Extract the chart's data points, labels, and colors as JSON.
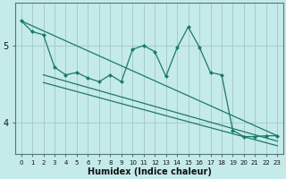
{
  "xlabel": "Humidex (Indice chaleur)",
  "bg_color": "#c5eaea",
  "grid_color": "#a8cccc",
  "line_color": "#1a7a6a",
  "xlim": [
    -0.5,
    23.5
  ],
  "ylim": [
    3.6,
    5.55
  ],
  "yticks": [
    4,
    5
  ],
  "xticks": [
    0,
    1,
    2,
    3,
    4,
    5,
    6,
    7,
    8,
    9,
    10,
    11,
    12,
    13,
    14,
    15,
    16,
    17,
    18,
    19,
    20,
    21,
    22,
    23
  ],
  "jagged_x": [
    0,
    1,
    2,
    3,
    4,
    5,
    6,
    7,
    8,
    9,
    10,
    11,
    12,
    13,
    14,
    15,
    16,
    17,
    18,
    19,
    20,
    21,
    22,
    23
  ],
  "jagged_y": [
    5.32,
    5.18,
    5.14,
    4.72,
    4.62,
    4.65,
    4.58,
    4.53,
    4.62,
    4.53,
    4.95,
    5.0,
    4.92,
    4.6,
    4.97,
    5.24,
    4.98,
    4.65,
    4.62,
    3.9,
    3.82,
    3.82,
    3.83,
    3.83
  ],
  "line1_x": [
    0,
    23
  ],
  "line1_y": [
    5.32,
    3.83
  ],
  "line2_x": [
    2,
    23
  ],
  "line2_y": [
    4.62,
    3.76
  ],
  "line3_x": [
    2,
    23
  ],
  "line3_y": [
    4.52,
    3.7
  ]
}
